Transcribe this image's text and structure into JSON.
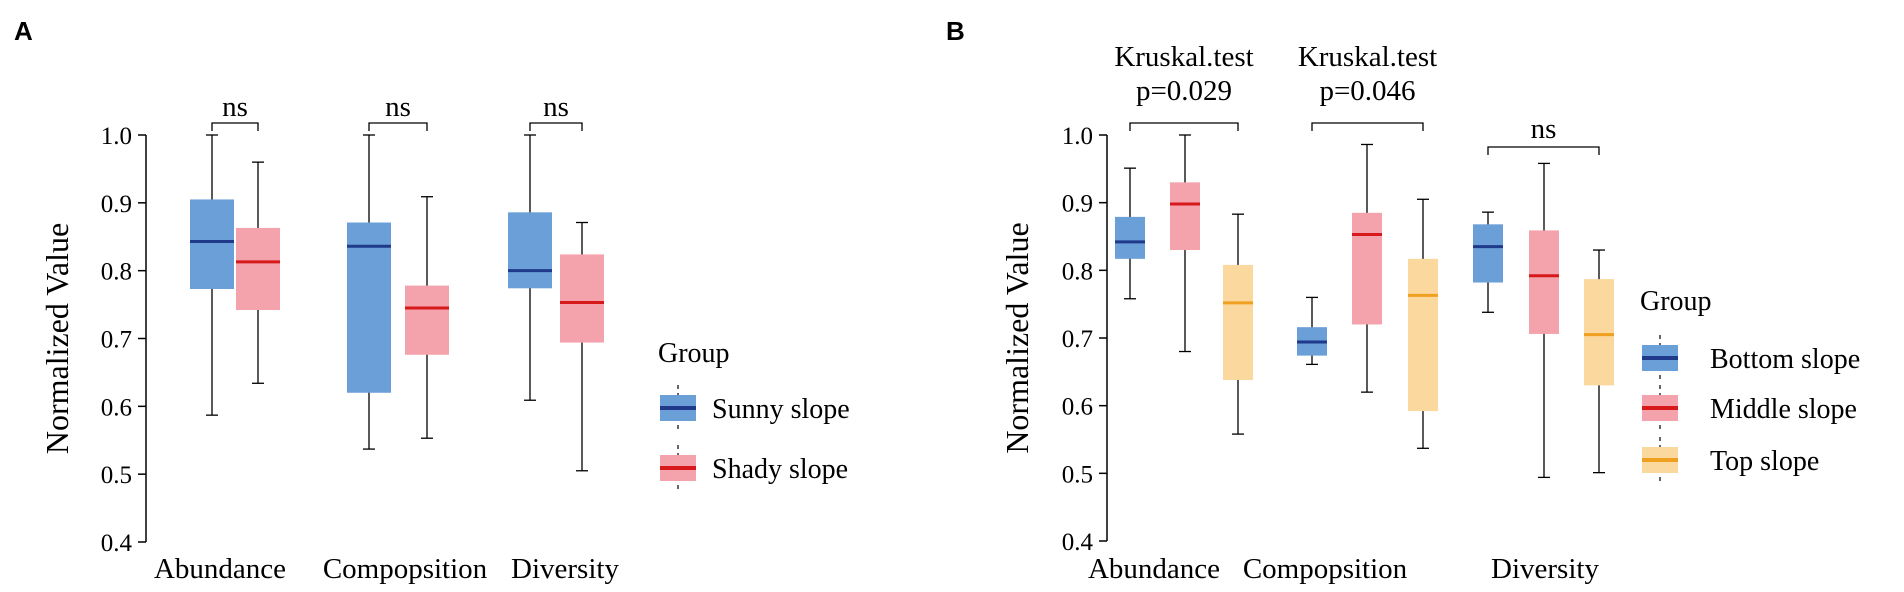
{
  "chart_data": [
    {
      "panel": "A",
      "type": "box",
      "ylabel": "Normalized Value",
      "ylim": [
        0.4,
        1.0
      ],
      "yticks": [
        "0.4",
        "0.5",
        "0.6",
        "0.7",
        "0.8",
        "0.9",
        "1.0"
      ],
      "categories": [
        "Abundance",
        "Compopsition",
        "Diversity"
      ],
      "legend": {
        "title": "Group",
        "position": "right"
      },
      "series": [
        {
          "name": "Sunny slope",
          "fill": "#6a9fd8",
          "median_color": "#1f3a8a",
          "boxes": [
            {
              "min": 0.587,
              "q1": 0.773,
              "median": 0.843,
              "q3": 0.905,
              "max": 1.0
            },
            {
              "min": 0.537,
              "q1": 0.62,
              "median": 0.836,
              "q3": 0.871,
              "max": 1.0
            },
            {
              "min": 0.609,
              "q1": 0.774,
              "median": 0.8,
              "q3": 0.886,
              "max": 1.0
            }
          ]
        },
        {
          "name": "Shady slope",
          "fill": "#f4a3ad",
          "median_color": "#d7191c",
          "boxes": [
            {
              "min": 0.634,
              "q1": 0.742,
              "median": 0.813,
              "q3": 0.863,
              "max": 0.96
            },
            {
              "min": 0.553,
              "q1": 0.676,
              "median": 0.745,
              "q3": 0.778,
              "max": 0.909
            },
            {
              "min": 0.505,
              "q1": 0.694,
              "median": 0.753,
              "q3": 0.824,
              "max": 0.871
            }
          ]
        }
      ],
      "annotations": [
        {
          "text": "ns",
          "category": 0
        },
        {
          "text": "ns",
          "category": 1
        },
        {
          "text": "ns",
          "category": 2
        }
      ]
    },
    {
      "panel": "B",
      "type": "box",
      "ylabel": "Normalized Value",
      "ylim": [
        0.4,
        1.0
      ],
      "yticks": [
        "0.4",
        "0.5",
        "0.6",
        "0.7",
        "0.8",
        "0.9",
        "1.0"
      ],
      "categories": [
        "Abundance",
        "Compopsition",
        "Diversity"
      ],
      "legend": {
        "title": "Group",
        "position": "right"
      },
      "series": [
        {
          "name": "Bottom slope",
          "fill": "#6a9fd8",
          "median_color": "#1f3a8a",
          "boxes": [
            {
              "min": 0.758,
              "q1": 0.817,
              "median": 0.842,
              "q3": 0.879,
              "max": 0.951
            },
            {
              "min": 0.661,
              "q1": 0.674,
              "median": 0.694,
              "q3": 0.716,
              "max": 0.76
            },
            {
              "min": 0.738,
              "q1": 0.782,
              "median": 0.835,
              "q3": 0.868,
              "max": 0.886
            }
          ]
        },
        {
          "name": "Middle slope",
          "fill": "#f4a3ad",
          "median_color": "#d7191c",
          "boxes": [
            {
              "min": 0.68,
              "q1": 0.83,
              "median": 0.898,
              "q3": 0.93,
              "max": 1.0
            },
            {
              "min": 0.62,
              "q1": 0.72,
              "median": 0.853,
              "q3": 0.885,
              "max": 0.986
            },
            {
              "min": 0.494,
              "q1": 0.706,
              "median": 0.792,
              "q3": 0.859,
              "max": 0.958
            }
          ]
        },
        {
          "name": "Top slope",
          "fill": "#fbd89e",
          "median_color": "#f0a020",
          "boxes": [
            {
              "min": 0.558,
              "q1": 0.638,
              "median": 0.752,
              "q3": 0.808,
              "max": 0.883
            },
            {
              "min": 0.537,
              "q1": 0.592,
              "median": 0.763,
              "q3": 0.817,
              "max": 0.905
            },
            {
              "min": 0.501,
              "q1": 0.63,
              "median": 0.705,
              "q3": 0.787,
              "max": 0.83
            }
          ]
        }
      ],
      "annotations": [
        {
          "lines": [
            "Kruskal.test",
            "p=0.029"
          ],
          "category": 0
        },
        {
          "lines": [
            "Kruskal.test",
            "p=0.046"
          ],
          "category": 1
        },
        {
          "lines": [
            "ns"
          ],
          "category": 2
        }
      ]
    }
  ]
}
